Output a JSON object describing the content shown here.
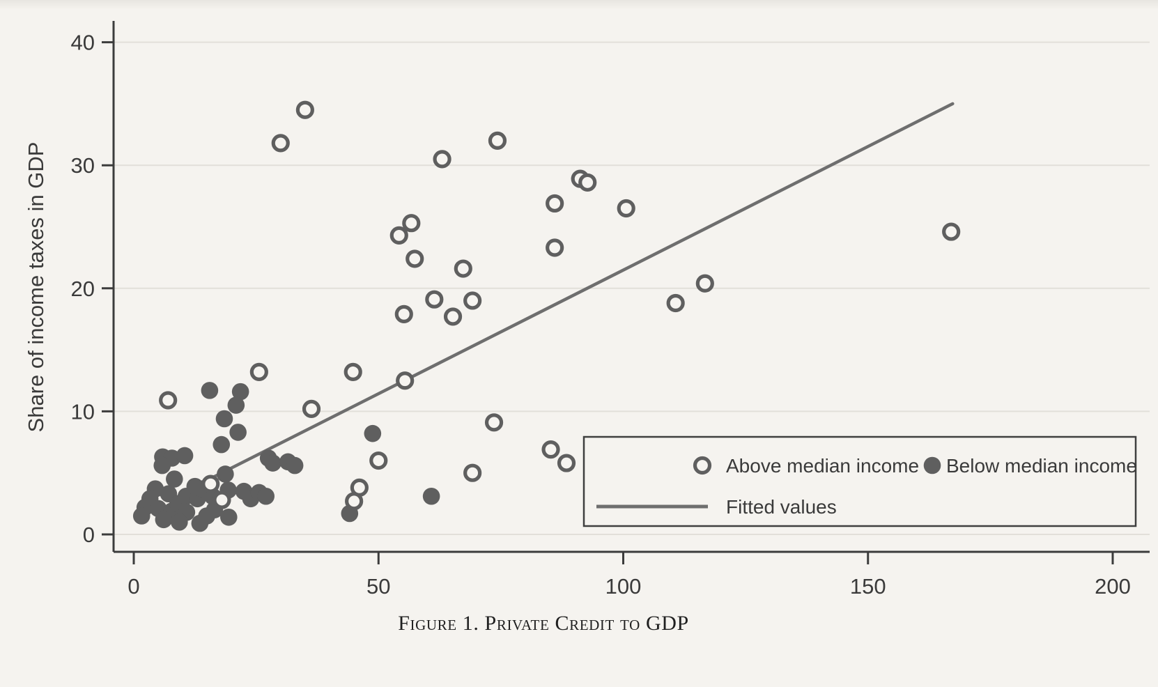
{
  "figure": {
    "caption": "Figure 1. Private Credit to GDP"
  },
  "axes": {
    "y_label": "Share of income taxes in GDP"
  },
  "legend": {
    "above_label": "Above median income",
    "below_label": "Below median income",
    "fitted_label": "Fitted values"
  },
  "colors": {
    "paper": "#f5f3ef",
    "grid": "#e2dfd9",
    "axis": "#3c3c3c",
    "point_gray": "#5f5f5f",
    "line_gray": "#6e6e6e"
  },
  "chart_data": {
    "type": "scatter",
    "title": "Figure 1. Private Credit to GDP",
    "xlabel": "",
    "ylabel": "Share of income taxes in GDP",
    "xlim": [
      0,
      207
    ],
    "ylim": [
      -2.2,
      42
    ],
    "x_ticks": [
      0,
      50,
      100,
      150,
      200
    ],
    "y_ticks": [
      0,
      10,
      20,
      30,
      40
    ],
    "grid": "horizontal-only",
    "legend_position": "inside-bottom-right",
    "series": [
      {
        "name": "Above median income",
        "marker": "open-circle",
        "points": [
          [
            7.0,
            10.9
          ],
          [
            25.6,
            13.2
          ],
          [
            30.0,
            31.8
          ],
          [
            35.0,
            34.5
          ],
          [
            63.0,
            30.5
          ],
          [
            74.3,
            32.0
          ],
          [
            54.2,
            24.3
          ],
          [
            56.7,
            25.3
          ],
          [
            57.4,
            22.4
          ],
          [
            67.3,
            21.6
          ],
          [
            61.4,
            19.1
          ],
          [
            69.2,
            19.0
          ],
          [
            55.2,
            17.9
          ],
          [
            65.2,
            17.7
          ],
          [
            44.8,
            13.2
          ],
          [
            55.4,
            12.5
          ],
          [
            36.3,
            10.2
          ],
          [
            73.6,
            9.1
          ],
          [
            85.2,
            6.9
          ],
          [
            88.4,
            5.8
          ],
          [
            69.2,
            5.0
          ],
          [
            50.0,
            6.0
          ],
          [
            46.1,
            3.8
          ],
          [
            45.0,
            2.7
          ],
          [
            86.0,
            26.9
          ],
          [
            86.0,
            23.3
          ],
          [
            91.2,
            28.9
          ],
          [
            92.7,
            28.6
          ],
          [
            100.6,
            26.5
          ],
          [
            116.7,
            20.4
          ],
          [
            110.7,
            18.8
          ],
          [
            167.0,
            24.6
          ],
          [
            15.7,
            4.1
          ],
          [
            18.0,
            2.8
          ]
        ]
      },
      {
        "name": "Below median income",
        "marker": "filled-circle",
        "points": [
          [
            15.5,
            11.7
          ],
          [
            21.8,
            11.6
          ],
          [
            20.9,
            10.5
          ],
          [
            18.5,
            9.4
          ],
          [
            21.3,
            8.3
          ],
          [
            17.9,
            7.3
          ],
          [
            5.9,
            6.3
          ],
          [
            7.8,
            6.2
          ],
          [
            10.4,
            6.4
          ],
          [
            5.8,
            5.6
          ],
          [
            27.5,
            6.2
          ],
          [
            28.4,
            5.8
          ],
          [
            31.5,
            5.9
          ],
          [
            32.9,
            5.6
          ],
          [
            4.4,
            3.7
          ],
          [
            8.3,
            4.5
          ],
          [
            7.1,
            3.3
          ],
          [
            3.3,
            2.9
          ],
          [
            2.3,
            2.2
          ],
          [
            1.6,
            1.5
          ],
          [
            5.0,
            2.1
          ],
          [
            7.8,
            1.9
          ],
          [
            6.1,
            1.2
          ],
          [
            9.0,
            2.5
          ],
          [
            10.7,
            3.1
          ],
          [
            10.8,
            1.8
          ],
          [
            9.3,
            1.0
          ],
          [
            12.5,
            3.9
          ],
          [
            13.0,
            2.9
          ],
          [
            14.0,
            3.7
          ],
          [
            19.3,
            3.6
          ],
          [
            16.1,
            3.1
          ],
          [
            16.5,
            2.0
          ],
          [
            14.9,
            1.5
          ],
          [
            13.5,
            0.9
          ],
          [
            19.4,
            1.4
          ],
          [
            18.7,
            4.9
          ],
          [
            22.5,
            3.5
          ],
          [
            23.9,
            2.9
          ],
          [
            25.6,
            3.4
          ],
          [
            27.0,
            3.1
          ],
          [
            48.8,
            8.2
          ],
          [
            44.1,
            1.7
          ],
          [
            60.8,
            3.1
          ]
        ]
      },
      {
        "name": "Fitted values",
        "type": "line",
        "points": [
          [
            9.5,
            3.3
          ],
          [
            167.3,
            35.0
          ]
        ]
      }
    ]
  }
}
